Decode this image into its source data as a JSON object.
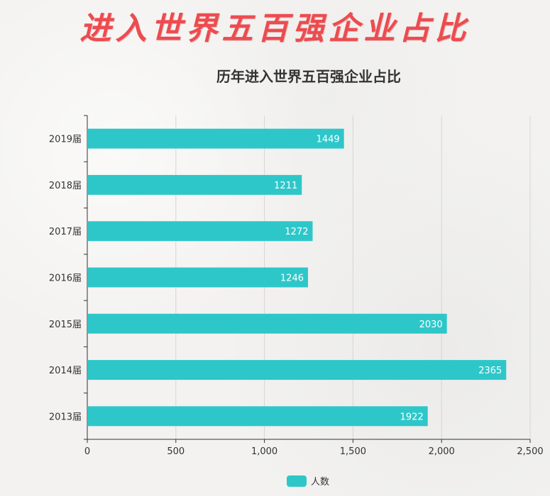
{
  "banner": {
    "text": "进入世界五百强企业占比"
  },
  "chart_data": {
    "type": "bar",
    "orientation": "horizontal",
    "title": "历年进入世界五百强企业占比",
    "categories": [
      "2019届",
      "2018届",
      "2017届",
      "2016届",
      "2015届",
      "2014届",
      "2013届"
    ],
    "series": [
      {
        "name": "人数",
        "values": [
          1449,
          1211,
          1272,
          1246,
          2030,
          2365,
          1922
        ],
        "color": "#2ec7c9"
      }
    ],
    "x_ticks": [
      "0",
      "500",
      "1,000",
      "1,500",
      "2,000",
      "2,500"
    ],
    "xlim": [
      0,
      2500
    ],
    "grid": true,
    "legend": "bottom-center"
  }
}
